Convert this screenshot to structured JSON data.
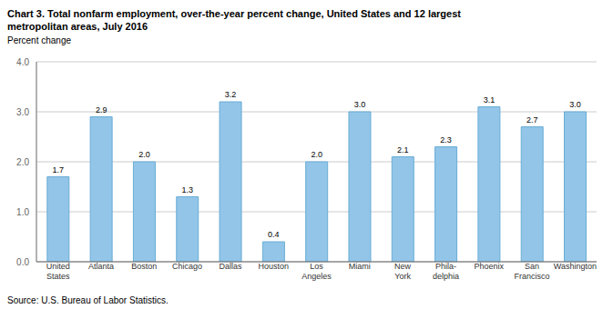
{
  "chart_data": {
    "type": "bar",
    "title": "Chart 3. Total nonfarm employment, over-the-year percent change, United States and 12 largest\nmetropolitan areas, July 2016",
    "ylabel": "Percent change",
    "source": "Source: U.S. Bureau of Labor Statistics.",
    "categories": [
      "United\nStates",
      "Atlanta",
      "Boston",
      "Chicago",
      "Dallas",
      "Houston",
      "Los\nAngeles",
      "Miami",
      "New\nYork",
      "Phila-\ndelphia",
      "Phoenix",
      "San\nFrancisco",
      "Washington"
    ],
    "values": [
      1.7,
      2.9,
      2.0,
      1.3,
      3.2,
      0.4,
      2.0,
      3.0,
      2.1,
      2.3,
      3.1,
      2.7,
      3.0
    ],
    "value_labels": [
      "1.7",
      "2.9",
      "2.0",
      "1.3",
      "3.2",
      "0.4",
      "2.0",
      "3.0",
      "2.1",
      "2.3",
      "3.1",
      "2.7",
      "3.0"
    ],
    "data_labels": true,
    "color": "#92C5E8",
    "ylim": [
      0,
      4.0
    ],
    "yticks": [
      {
        "value": 0.0,
        "label": "0.0"
      },
      {
        "value": 1.0,
        "label": "1.0"
      },
      {
        "value": 2.0,
        "label": "2.0"
      },
      {
        "value": 3.0,
        "label": "3.0"
      },
      {
        "value": 4.0,
        "label": "4.0"
      }
    ],
    "grid": true
  }
}
